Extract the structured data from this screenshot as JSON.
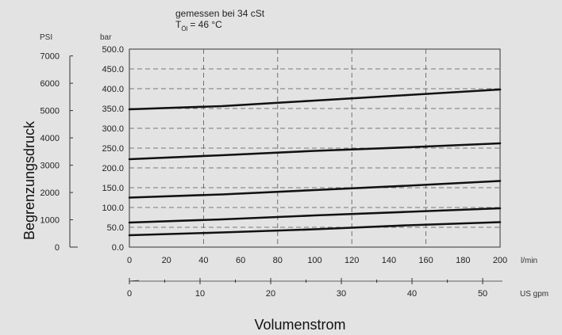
{
  "chart_data": {
    "type": "line",
    "annotation": {
      "line1": "gemessen bei 34 cSt",
      "line2_sym": "T",
      "line2_sub": "Öl",
      "line2_val": "= 46 °C"
    },
    "ylabel": "Begrenzungsdruck",
    "xlabel": "Volumenstrom",
    "y_unit_left": "PSI",
    "y_unit_right": "bar",
    "x_unit": "l/min",
    "x2_unit": "US gpm",
    "xlim": [
      0,
      200
    ],
    "ylim": [
      0,
      500
    ],
    "psi_lim": [
      0,
      7250
    ],
    "gpm_lim": [
      0,
      52.8
    ],
    "x_ticks": [
      "0",
      "20",
      "40",
      "60",
      "80",
      "100",
      "120",
      "140",
      "160",
      "180",
      "200"
    ],
    "bar_ticks": [
      "0.0",
      "50.0",
      "100.0",
      "150.0",
      "200.0",
      "250.0",
      "300.0",
      "350.0",
      "400.0",
      "450.0",
      "500.0"
    ],
    "psi_ticks": [
      "0",
      "1000",
      "2000",
      "3000",
      "4000",
      "5000",
      "6000",
      "7000"
    ],
    "gpm_ticks": [
      "0",
      "10",
      "20",
      "30",
      "40",
      "50"
    ],
    "grid": true,
    "series": [
      {
        "x": [
          0,
          50,
          100,
          150,
          200
        ],
        "y": [
          30,
          37,
          45,
          55,
          63
        ]
      },
      {
        "x": [
          0,
          50,
          100,
          150,
          200
        ],
        "y": [
          62,
          70,
          80,
          89,
          98
        ]
      },
      {
        "x": [
          0,
          50,
          100,
          150,
          200
        ],
        "y": [
          125,
          133,
          144,
          155,
          167
        ]
      },
      {
        "x": [
          0,
          50,
          100,
          150,
          200
        ],
        "y": [
          222,
          232,
          243,
          252,
          262
        ]
      },
      {
        "x": [
          0,
          50,
          100,
          150,
          200
        ],
        "y": [
          348,
          356,
          370,
          384,
          398
        ]
      }
    ]
  }
}
